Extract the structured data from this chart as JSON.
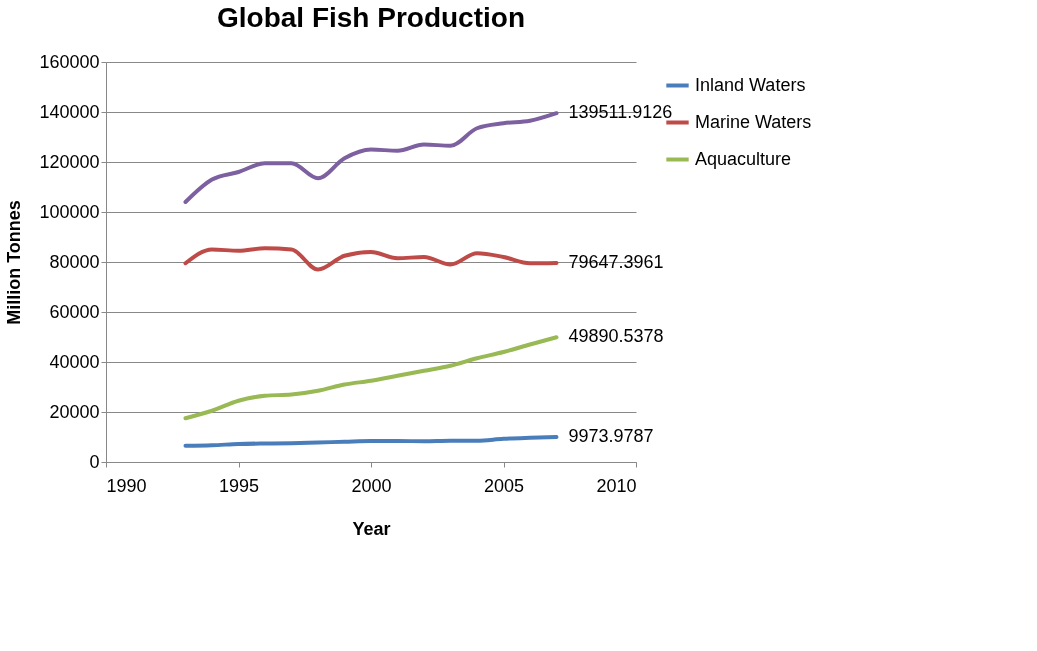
{
  "chart_data": {
    "type": "line",
    "title": "Global Fish Production",
    "xlabel": "Year",
    "ylabel": "Million Tonnes",
    "x": [
      1993,
      1994,
      1995,
      1996,
      1997,
      1998,
      1999,
      2000,
      2001,
      2002,
      2003,
      2004,
      2005,
      2006,
      2007
    ],
    "series": [
      {
        "name": "Inland Waters",
        "color": "#4a7ebb",
        "values": [
          6500,
          6700,
          7200,
          7400,
          7500,
          7800,
          8100,
          8400,
          8400,
          8300,
          8500,
          8500,
          9300,
          9700,
          9973.9787
        ],
        "value_labels": [
          null,
          null,
          null,
          null,
          null,
          null,
          null,
          null,
          null,
          null,
          null,
          null,
          null,
          null,
          "9973.9787"
        ]
      },
      {
        "name": "Marine Waters",
        "color": "#be4b48",
        "values": [
          79500,
          85000,
          84500,
          85500,
          85000,
          77000,
          82500,
          84000,
          81500,
          82000,
          79000,
          83500,
          82000,
          79500,
          79647.3961
        ],
        "value_labels": [
          null,
          null,
          null,
          null,
          null,
          null,
          null,
          null,
          null,
          null,
          null,
          null,
          null,
          null,
          "79647.3961"
        ]
      },
      {
        "name": "Aquaculture",
        "color": "#98b954",
        "values": [
          17500,
          20500,
          24500,
          26500,
          27000,
          28500,
          31000,
          32500,
          34500,
          36500,
          38500,
          41500,
          44000,
          47000,
          49890.5378
        ],
        "value_labels": [
          null,
          null,
          null,
          null,
          null,
          null,
          null,
          null,
          null,
          null,
          null,
          null,
          null,
          null,
          "49890.5378"
        ]
      },
      {
        "color": "#7d60a0",
        "values": [
          104000,
          113000,
          116000,
          119500,
          119500,
          113500,
          121500,
          125000,
          124500,
          127000,
          126500,
          133500,
          135500,
          136500,
          139511.9126
        ],
        "value_labels": [
          null,
          null,
          null,
          null,
          null,
          null,
          null,
          null,
          null,
          null,
          null,
          null,
          null,
          null,
          "139511.9126"
        ]
      }
    ],
    "xlim": [
      1990,
      2010
    ],
    "xticks": [
      1990,
      1995,
      2000,
      2005,
      2010
    ],
    "ylim": [
      0,
      160000
    ],
    "yticks": [
      0,
      20000,
      40000,
      60000,
      80000,
      100000,
      120000,
      140000,
      160000
    ],
    "grid": "y",
    "legend": "top right",
    "marker": "none",
    "line_style": "solid"
  }
}
